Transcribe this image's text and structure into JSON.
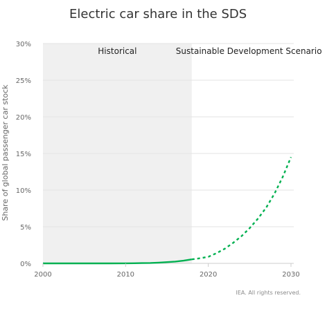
{
  "chart_data": {
    "type": "line",
    "title": "Electric car share in the SDS",
    "xlabel": "",
    "ylabel": "Share of global passenger car stock",
    "xlim": [
      2000,
      2030
    ],
    "ylim": [
      0,
      30
    ],
    "x_ticks": [
      2000,
      2010,
      2020,
      2030
    ],
    "y_ticks": [
      0,
      5,
      10,
      15,
      20,
      25,
      30
    ],
    "y_tick_labels": [
      "0%",
      "5%",
      "10%",
      "15%",
      "20%",
      "25%",
      "30%"
    ],
    "grid": true,
    "legend": "none",
    "regions": [
      {
        "label": "Historical",
        "x_start": 2000,
        "x_end": 2018,
        "shaded": true
      },
      {
        "label": "Sustainable Development Scenario",
        "x_start": 2018,
        "x_end": 2030,
        "shaded": false
      }
    ],
    "series": [
      {
        "style": "solid",
        "color": "#00b050",
        "x": [
          2000,
          2002,
          2004,
          2006,
          2008,
          2010,
          2011,
          2012,
          2013,
          2014,
          2015,
          2016,
          2017,
          2018
        ],
        "values": [
          0,
          0,
          0,
          0,
          0,
          0.01,
          0.02,
          0.04,
          0.06,
          0.1,
          0.17,
          0.25,
          0.37,
          0.55
        ]
      },
      {
        "style": "dashed",
        "color": "#00b050",
        "x": [
          2018,
          2019,
          2020,
          2021,
          2022,
          2023,
          2024,
          2025,
          2026,
          2027,
          2028,
          2029,
          2030
        ],
        "values": [
          0.55,
          0.7,
          0.9,
          1.4,
          2.0,
          2.8,
          3.7,
          4.8,
          6.1,
          7.6,
          9.5,
          11.8,
          14.5
        ]
      }
    ],
    "credit": "IEA. All rights reserved."
  },
  "colors": {
    "historical_shade": "#f0f0f0",
    "grid": "#e3e3e3",
    "axis": "#cccccc"
  }
}
